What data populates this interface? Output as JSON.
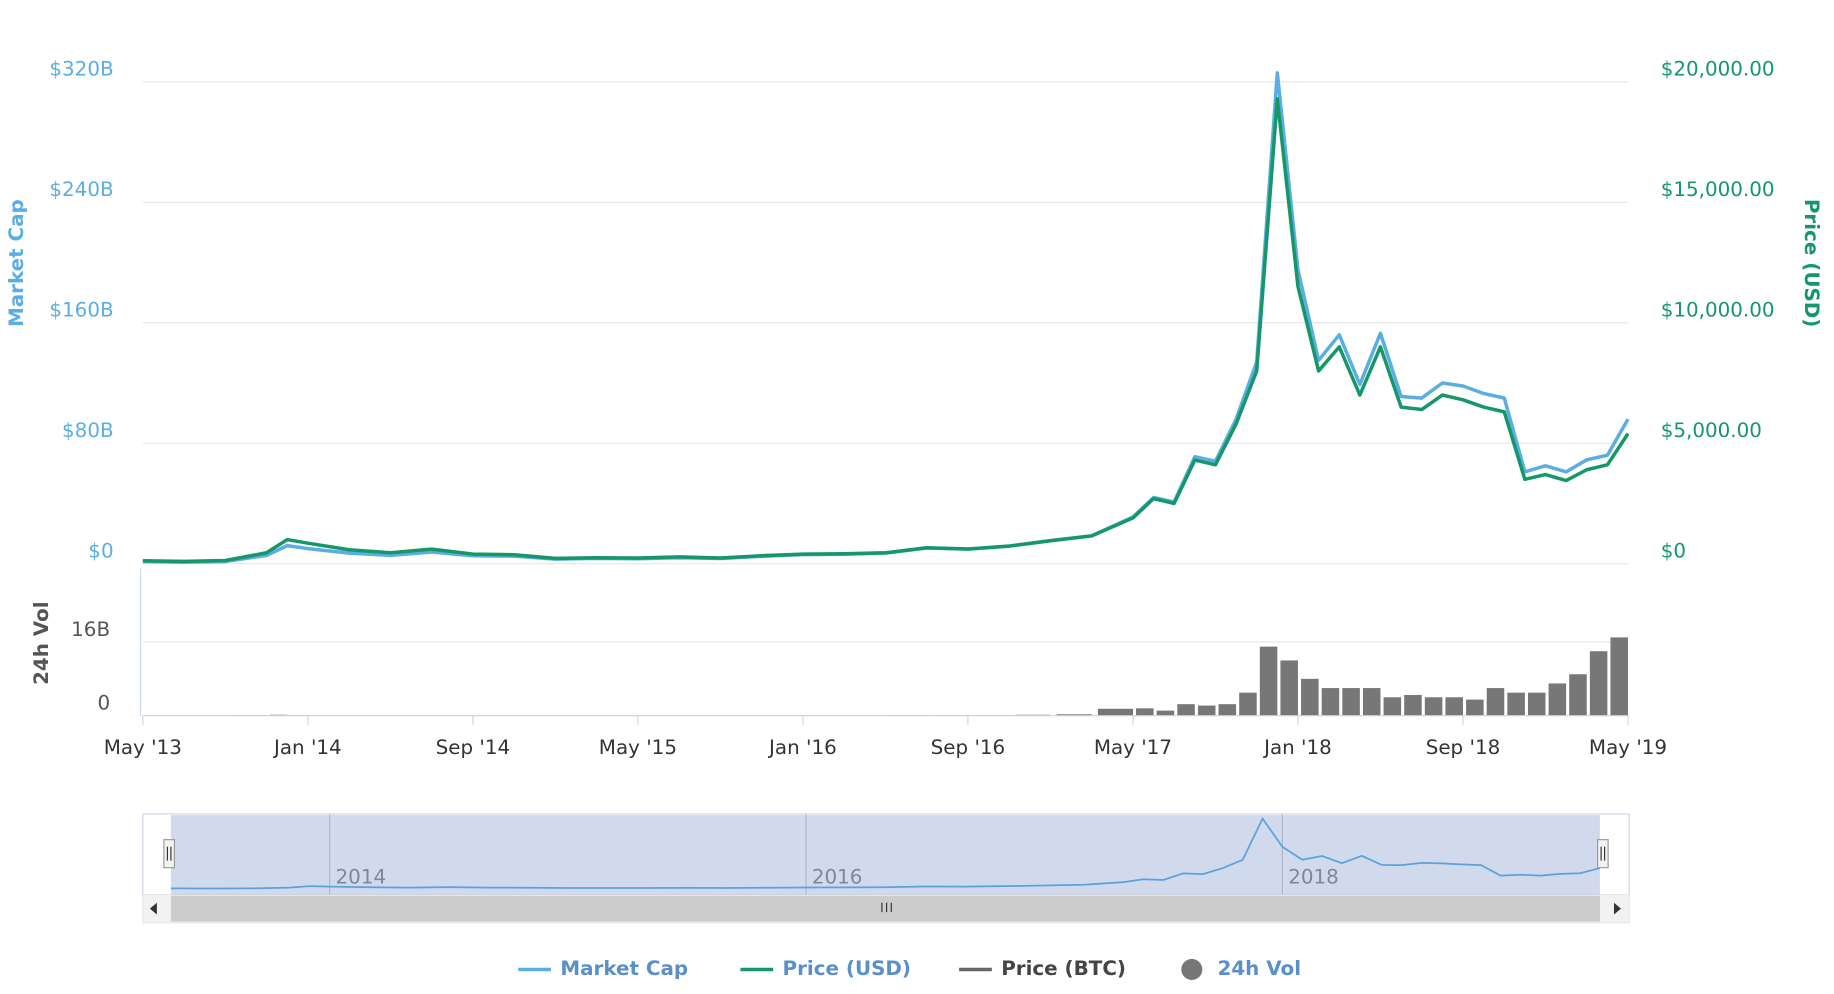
{
  "chart_data": {
    "type": "line",
    "ylabel": "Market Cap",
    "y2label": "Price (USD)",
    "ylim": [
      0,
      320
    ],
    "yticks": [
      {
        "value": 0,
        "label": "$0"
      },
      {
        "value": 80,
        "label": "$80B"
      },
      {
        "value": 160,
        "label": "$160B"
      },
      {
        "value": 240,
        "label": "$240B"
      },
      {
        "value": 320,
        "label": "$320B"
      }
    ],
    "y2lim": [
      0,
      20000
    ],
    "y2ticks": [
      {
        "value": 0,
        "label": "$0"
      },
      {
        "value": 5000,
        "label": "$5,000.00"
      },
      {
        "value": 10000,
        "label": "$10,000.00"
      },
      {
        "value": 15000,
        "label": "$15,000.00"
      },
      {
        "value": 20000,
        "label": "$20,000.00"
      }
    ],
    "grid": true,
    "x": [
      "2013-05",
      "2013-07",
      "2013-09",
      "2013-11",
      "2013-12",
      "2014-01",
      "2014-03",
      "2014-05",
      "2014-07",
      "2014-09",
      "2014-11",
      "2015-01",
      "2015-03",
      "2015-05",
      "2015-07",
      "2015-09",
      "2015-11",
      "2016-01",
      "2016-03",
      "2016-05",
      "2016-07",
      "2016-09",
      "2016-11",
      "2017-01",
      "2017-03",
      "2017-05",
      "2017-06",
      "2017-07",
      "2017-08",
      "2017-09",
      "2017-10",
      "2017-11",
      "2017-12",
      "2018-01",
      "2018-02",
      "2018-03",
      "2018-04",
      "2018-05",
      "2018-06",
      "2018-07",
      "2018-08",
      "2018-09",
      "2018-10",
      "2018-11",
      "2018-12",
      "2019-01",
      "2019-02",
      "2019-03",
      "2019-04",
      "2019-05"
    ],
    "xlim": [
      "2013-05",
      "2019-05"
    ],
    "xticks": [
      {
        "value": "2013-05",
        "label": "May '13"
      },
      {
        "value": "2014-01",
        "label": "Jan '14"
      },
      {
        "value": "2014-09",
        "label": "Sep '14"
      },
      {
        "value": "2015-05",
        "label": "May '15"
      },
      {
        "value": "2016-01",
        "label": "Jan '16"
      },
      {
        "value": "2016-09",
        "label": "Sep '16"
      },
      {
        "value": "2017-05",
        "label": "May '17"
      },
      {
        "value": "2018-01",
        "label": "Jan '18"
      },
      {
        "value": "2018-09",
        "label": "Sep '18"
      },
      {
        "value": "2019-05",
        "label": "May '19"
      }
    ],
    "series": [
      {
        "name": "Market Cap",
        "color": "#5aaee3",
        "axis": "y",
        "values": [
          1.4,
          1.0,
          1.5,
          5.5,
          12,
          10,
          7,
          5.5,
          7.8,
          5.3,
          5,
          3,
          3.5,
          3.3,
          4,
          3.4,
          4.9,
          6,
          6.3,
          7,
          10.4,
          9.6,
          11.7,
          15.3,
          18.6,
          31,
          44,
          41,
          71,
          68,
          96,
          134,
          326,
          195,
          135,
          152,
          119,
          153,
          111,
          110,
          120,
          118,
          113,
          110,
          61,
          65,
          61,
          69,
          72,
          96
        ]
      },
      {
        "name": "Price (USD)",
        "color": "#16976a",
        "axis": "y2",
        "values": [
          120,
          90,
          130,
          450,
          1000,
          850,
          580,
          450,
          600,
          400,
          370,
          220,
          250,
          235,
          280,
          235,
          330,
          400,
          415,
          450,
          660,
          605,
          730,
          950,
          1150,
          1900,
          2700,
          2500,
          4300,
          4100,
          5800,
          8000,
          19300,
          11500,
          8000,
          9000,
          7000,
          9000,
          6500,
          6400,
          7000,
          6800,
          6500,
          6300,
          3500,
          3700,
          3450,
          3900,
          4100,
          5400
        ]
      },
      {
        "name": "Price (BTC)",
        "color": "#666666"
      }
    ],
    "volume": {
      "name": "24h Vol",
      "ylabel": "24h Vol",
      "color": "#777777",
      "ylim": [
        0,
        32
      ],
      "yticks": [
        0,
        {
          "value": 16,
          "label": "16B"
        }
      ],
      "values": [
        0.01,
        0.01,
        0.02,
        0.1,
        0.2,
        0.1,
        0.05,
        0.03,
        0.02,
        0.02,
        0.02,
        0.03,
        0.03,
        0.02,
        0.03,
        0.02,
        0.05,
        0.05,
        0.04,
        0.05,
        0.1,
        0.08,
        0.1,
        0.2,
        0.3,
        1.5,
        1.6,
        1.1,
        2.5,
        2.2,
        2.5,
        5,
        15,
        12,
        8,
        6,
        6,
        6,
        4,
        4.5,
        4,
        4,
        3.5,
        6,
        5,
        5,
        7,
        9,
        14,
        17
      ]
    },
    "navigator": {
      "xticks": [
        {
          "value": "2014-01",
          "label": "2014"
        },
        {
          "value": "2016-01",
          "label": "2016"
        },
        {
          "value": "2018-01",
          "label": "2018"
        }
      ]
    }
  }
}
